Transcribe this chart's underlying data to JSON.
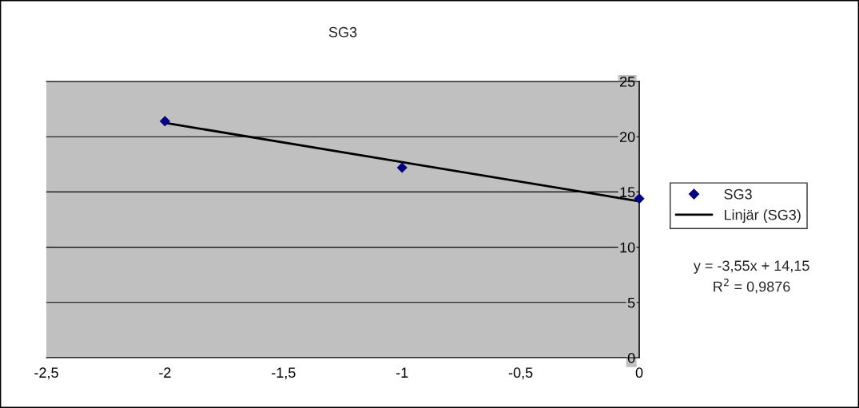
{
  "chart_data": {
    "type": "scatter",
    "title": "SG3",
    "series": [
      {
        "name": "SG3",
        "color": "#000080",
        "marker": "diamond",
        "x": [
          -2,
          -1,
          0
        ],
        "values": [
          21.4,
          17.2,
          14.4
        ]
      },
      {
        "name": "Linjär (SG3)",
        "type": "line",
        "color": "#000000",
        "marker": "none",
        "line_style": "solid",
        "x": [
          -2,
          0
        ],
        "values": [
          21.25,
          14.15
        ]
      }
    ],
    "xlim": [
      -2.5,
      0
    ],
    "xticks": [
      {
        "value": -2.5,
        "label": "-2,5"
      },
      {
        "value": -2,
        "label": "-2"
      },
      {
        "value": -1.5,
        "label": "-1,5"
      },
      {
        "value": -1,
        "label": "-1"
      },
      {
        "value": -0.5,
        "label": "-0,5"
      },
      {
        "value": 0,
        "label": "0"
      }
    ],
    "ylim": [
      0,
      25
    ],
    "yticks": [
      0,
      5,
      10,
      15,
      20,
      25
    ],
    "grid": "y",
    "legend": "right",
    "annotations": [
      "y = -3,55x + 14,15\nR$^{2}$ = 0,9876"
    ]
  }
}
